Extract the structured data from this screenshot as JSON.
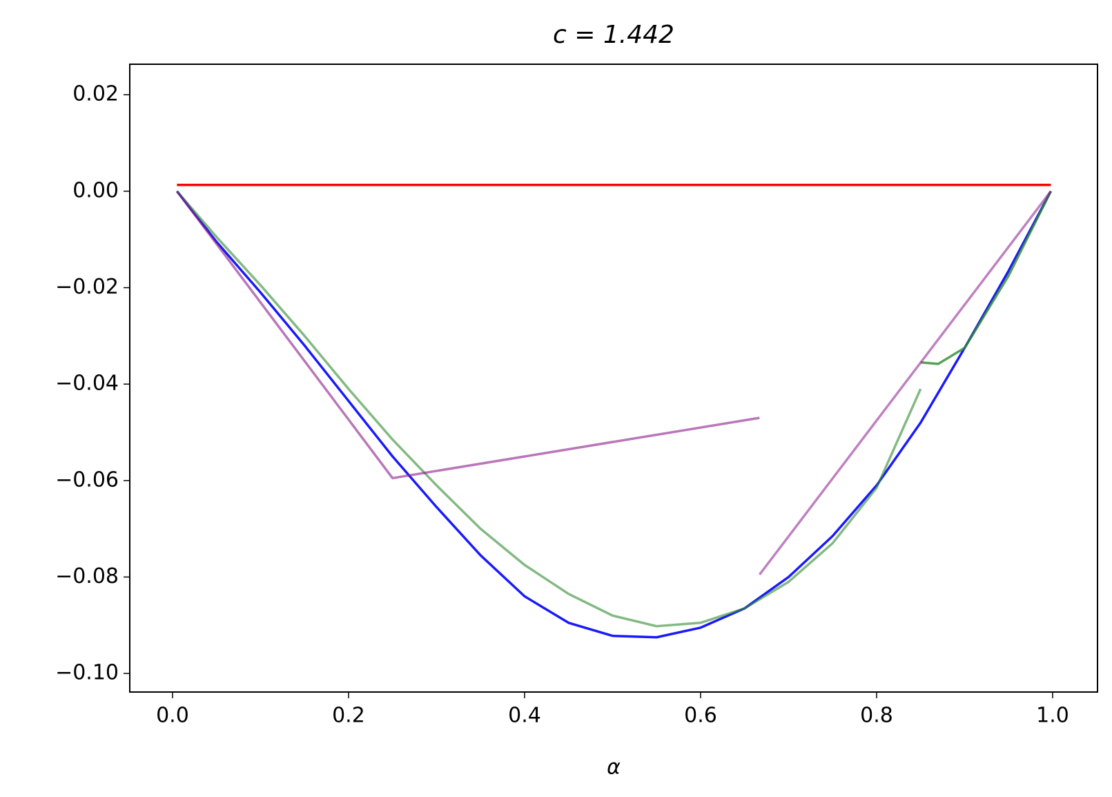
{
  "chart_data": {
    "type": "line",
    "title": "c = 1.442",
    "xlabel": "α",
    "xlim": [
      -0.0486,
      1.051
    ],
    "ylim": [
      -0.10385,
      0.02633
    ],
    "xticks": [
      {
        "value": 0,
        "label": "0.0"
      },
      {
        "value": 0.2,
        "label": "0.2"
      },
      {
        "value": 0.4,
        "label": "0.4"
      },
      {
        "value": 0.6,
        "label": "0.6"
      },
      {
        "value": 0.8,
        "label": "0.8"
      },
      {
        "value": 1,
        "label": "1.0"
      }
    ],
    "yticks": [
      {
        "value": -0.1,
        "label": "−0.10"
      },
      {
        "value": -0.08,
        "label": "−0.08"
      },
      {
        "value": -0.06,
        "label": "−0.06"
      },
      {
        "value": -0.04,
        "label": "−0.04"
      },
      {
        "value": -0.02,
        "label": "−0.02"
      },
      {
        "value": 0,
        "label": "0.00"
      },
      0.02
    ],
    "series": [
      {
        "color": "#ff0000",
        "opacity": 1,
        "x": [
          0.005,
          0.998
        ],
        "values": [
          0.0013,
          0.0013
        ]
      },
      {
        "color": "#0000ff",
        "opacity": 0.9,
        "x": [
          0.005,
          0.05,
          0.1,
          0.15,
          0.2,
          0.25,
          0.3,
          0.35,
          0.4,
          0.45,
          0.5,
          0.55,
          0.6,
          0.65,
          0.7,
          0.75,
          0.8,
          0.85,
          0.9,
          0.95,
          0.998
        ],
        "values": [
          0,
          -0.0105,
          -0.021,
          -0.032,
          -0.0435,
          -0.055,
          -0.0655,
          -0.0755,
          -0.084,
          -0.0895,
          -0.0922,
          -0.0925,
          -0.0905,
          -0.0865,
          -0.08,
          -0.0715,
          -0.061,
          -0.048,
          -0.0325,
          -0.0165,
          0
        ]
      },
      {
        "color": "#2e8b2e",
        "opacity": 0.6,
        "x": [
          0.005,
          0.05,
          0.1,
          0.15,
          0.2,
          0.25,
          0.3,
          0.35,
          0.4,
          0.45,
          0.5,
          0.55,
          0.6,
          0.65,
          0.7,
          0.75,
          0.8,
          0.85
        ],
        "values": [
          0,
          -0.0095,
          -0.0195,
          -0.03,
          -0.041,
          -0.0515,
          -0.061,
          -0.07,
          -0.0775,
          -0.0835,
          -0.088,
          -0.0902,
          -0.0895,
          -0.0865,
          -0.081,
          -0.073,
          -0.0615,
          -0.041
        ]
      },
      {
        "color": "#2e8b2e",
        "opacity": 0.8,
        "x": [
          0.85,
          0.87,
          0.9,
          0.95,
          0.998
        ],
        "values": [
          -0.0355,
          -0.0358,
          -0.0325,
          -0.0175,
          0
        ]
      },
      {
        "color": "#8b1a8b",
        "opacity": 0.6,
        "x": [
          0.005,
          0.25,
          0.667
        ],
        "values": [
          0,
          -0.0595,
          -0.047
        ]
      },
      {
        "color": "#8b1a8b",
        "opacity": 0.55,
        "x": [
          0.667,
          0.998
        ],
        "values": [
          -0.0795,
          0
        ]
      }
    ]
  }
}
